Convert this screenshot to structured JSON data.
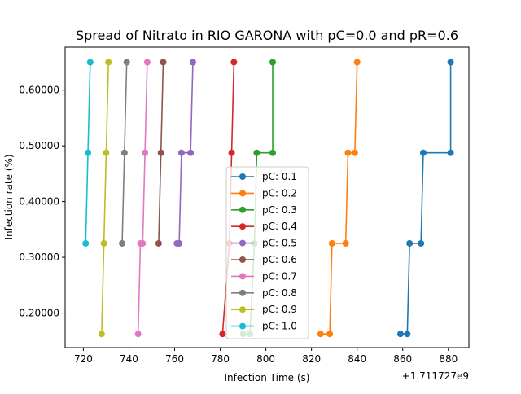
{
  "chart_data": {
    "type": "line",
    "title": "Spread of Nitrato in RIO GARONA with pC=0.0 and pR=0.6",
    "xlabel": "Infection Time (s)",
    "ylabel": "Infection rate (%)",
    "x_offset_label": "+1.711727e9",
    "xlim": [
      712,
      889
    ],
    "ylim": [
      0.138,
      0.677
    ],
    "xticks": [
      "720",
      "740",
      "760",
      "780",
      "800",
      "820",
      "840",
      "860",
      "880"
    ],
    "yticks": [
      "0.20000",
      "0.30000",
      "0.40000",
      "0.50000",
      "0.60000"
    ],
    "grid": false,
    "legend_position": "center",
    "series": [
      {
        "name": "pC: 0.1",
        "color": "#1f77b4",
        "points": [
          [
            859,
            0.1625
          ],
          [
            862,
            0.1625
          ],
          [
            863,
            0.325
          ],
          [
            868,
            0.325
          ],
          [
            869,
            0.4875
          ],
          [
            881,
            0.4875
          ],
          [
            881,
            0.65
          ]
        ]
      },
      {
        "name": "pC: 0.2",
        "color": "#ff7f0e",
        "points": [
          [
            824,
            0.1625
          ],
          [
            828,
            0.1625
          ],
          [
            829,
            0.325
          ],
          [
            835,
            0.325
          ],
          [
            836,
            0.4875
          ],
          [
            839,
            0.4875
          ],
          [
            840,
            0.65
          ]
        ]
      },
      {
        "name": "pC: 0.3",
        "color": "#2ca02c",
        "points": [
          [
            790,
            0.1625
          ],
          [
            793,
            0.1625
          ],
          [
            795,
            0.325
          ],
          [
            796,
            0.4875
          ],
          [
            803,
            0.4875
          ],
          [
            803,
            0.65
          ]
        ]
      },
      {
        "name": "pC: 0.4",
        "color": "#d62728",
        "points": [
          [
            781,
            0.1625
          ],
          [
            784,
            0.325
          ],
          [
            785,
            0.4875
          ],
          [
            786,
            0.65
          ]
        ]
      },
      {
        "name": "pC: 0.5",
        "color": "#9467bd",
        "points": [
          [
            761,
            0.325
          ],
          [
            762,
            0.325
          ],
          [
            763,
            0.4875
          ],
          [
            767,
            0.4875
          ],
          [
            768,
            0.65
          ]
        ]
      },
      {
        "name": "pC: 0.6",
        "color": "#8c564b",
        "points": [
          [
            753,
            0.325
          ],
          [
            754,
            0.4875
          ],
          [
            755,
            0.65
          ]
        ]
      },
      {
        "name": "pC: 0.7",
        "color": "#e377c2",
        "points": [
          [
            744,
            0.1625
          ],
          [
            745,
            0.325
          ],
          [
            746,
            0.325
          ],
          [
            747,
            0.4875
          ],
          [
            748,
            0.65
          ]
        ]
      },
      {
        "name": "pC: 0.8",
        "color": "#7f7f7f",
        "points": [
          [
            737,
            0.325
          ],
          [
            738,
            0.4875
          ],
          [
            739,
            0.65
          ]
        ]
      },
      {
        "name": "pC: 0.9",
        "color": "#bcbd22",
        "points": [
          [
            728,
            0.1625
          ],
          [
            729,
            0.325
          ],
          [
            730,
            0.4875
          ],
          [
            731,
            0.65
          ]
        ]
      },
      {
        "name": "pC: 1.0",
        "color": "#17becf",
        "points": [
          [
            721,
            0.325
          ],
          [
            722,
            0.4875
          ],
          [
            723,
            0.65
          ]
        ]
      }
    ]
  }
}
